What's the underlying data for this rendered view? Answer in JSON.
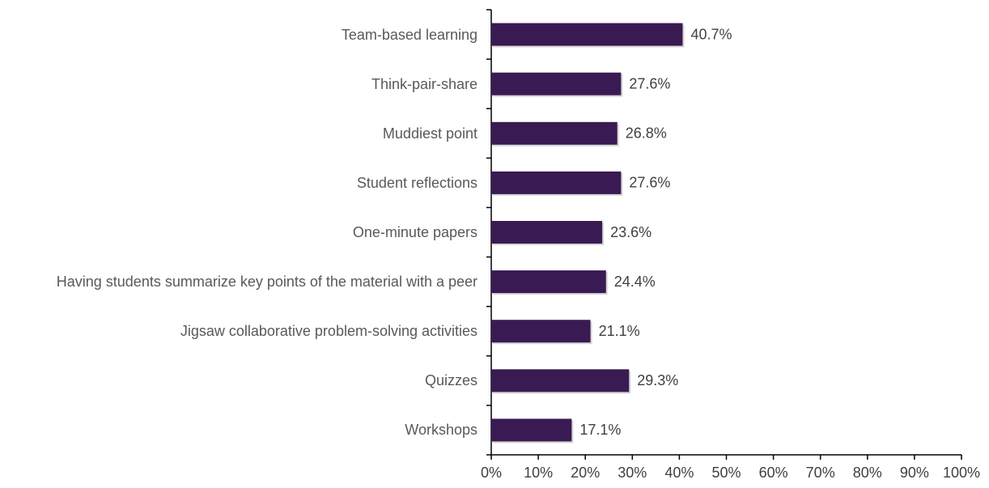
{
  "chart_data": {
    "type": "bar",
    "orientation": "horizontal",
    "categories": [
      "Team-based learning",
      "Think-pair-share",
      "Muddiest point",
      "Student reflections",
      "One-minute papers",
      "Having students summarize key points of the material with a peer",
      "Jigsaw collaborative problem-solving activities",
      "Quizzes",
      "Workshops"
    ],
    "values": [
      40.7,
      27.6,
      26.8,
      27.6,
      23.6,
      24.4,
      21.1,
      29.3,
      17.1
    ],
    "value_labels": [
      "40.7%",
      "27.6%",
      "26.8%",
      "27.6%",
      "23.6%",
      "24.4%",
      "21.1%",
      "29.3%",
      "17.1%"
    ],
    "color": "#3a1a52",
    "xlim": [
      0,
      100
    ],
    "xticks": [
      {
        "value": 0,
        "label": "0%"
      },
      {
        "value": 10,
        "label": "10%"
      },
      {
        "value": 20,
        "label": "20%"
      },
      {
        "value": 30,
        "label": "30%"
      },
      {
        "value": 40,
        "label": "40%"
      },
      {
        "value": 50,
        "label": "50%"
      },
      {
        "value": 60,
        "label": "60%"
      },
      {
        "value": 70,
        "label": "70%"
      },
      {
        "value": 80,
        "label": "80%"
      },
      {
        "value": 90,
        "label": "90%"
      },
      {
        "value": 100,
        "label": "100%"
      }
    ],
    "grid": false
  }
}
